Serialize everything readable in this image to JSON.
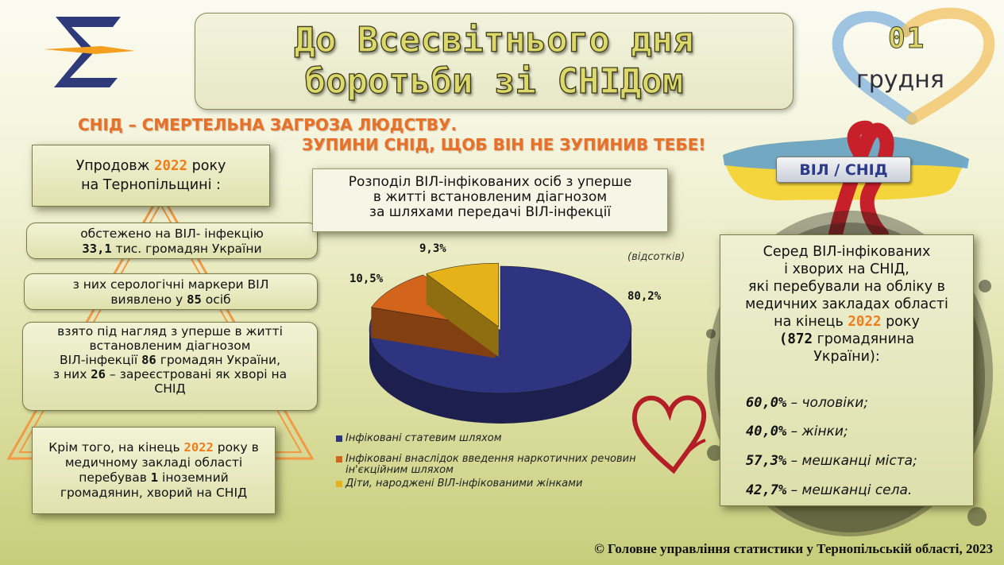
{
  "title": {
    "line1": "До Всесвітнього дня",
    "line2": "боротьби зі СНІДом"
  },
  "date": {
    "day": "01",
    "month": "грудня"
  },
  "slogan": {
    "line1": "СНІД – СМЕРТЕЛЬНА ЗАГРОЗА ЛЮДСТВУ.",
    "line2": "ЗУПИНИ СНІД, ЩОБ ВІН НЕ ЗУПИНИВ ТЕБЕ!"
  },
  "badge": "ВІЛ / СНІД",
  "left": {
    "lead_a": "Упродовж ",
    "lead_year": "2022",
    "lead_b": " року",
    "lead_c": "на Тернопільщині :",
    "p1_a": "обстежено на ВІЛ- інфекцію",
    "p1_num": "33,1",
    "p1_b": " тис. громадян України",
    "p2_a": "з них серологічні маркери ВІЛ",
    "p2_b": "виявлено у ",
    "p2_num": "85",
    "p2_c": "  осіб",
    "p3_a": "взято під нагляд з уперше в житті",
    "p3_b": "встановленим діагнозом",
    "p3_c": "ВІЛ-інфекції ",
    "p3_num1": "86",
    "p3_d": "  громадян України,",
    "p3_e": "з них ",
    "p3_num2": "26",
    "p3_f": "  –   зареєстровані як хворі на",
    "p3_g": "СНІД",
    "p4_a": "Крім того, на кінець ",
    "p4_year": "2022",
    "p4_b": " року в",
    "p4_c": "медичному закладі області",
    "p4_d": "перебував ",
    "p4_num": "1",
    "p4_e": "  іноземний",
    "p4_f": "громадянин, хворий на СНІД"
  },
  "chart_data": {
    "type": "pie",
    "title": "Розподіл ВІЛ-інфікованих осіб з уперше в житті встановленим діагнозом за шляхами передачі ВІЛ-інфекції",
    "unit_note": "(відсотків)",
    "slices": [
      {
        "label": "Інфіковані статевим шляхом",
        "value": 80.2,
        "value_label": "80,2%",
        "color": "#2e3480"
      },
      {
        "label": "Інфіковані внаслідок введення наркотичних речовин ін'єкційним шляхом",
        "value": 10.5,
        "value_label": "10,5%",
        "color": "#d2651b"
      },
      {
        "label": "Діти, народжені ВІЛ-інфікованими жінками",
        "value": 9.3,
        "value_label": "9,3%",
        "color": "#e5b21a"
      }
    ],
    "title_lines": [
      "Розподіл ВІЛ-інфікованих осіб з уперше",
      "в житті встановленим діагнозом",
      "за шляхами передачі ВІЛ-інфекції"
    ],
    "legend_lines": [
      [
        "Інфіковані статевим шляхом"
      ],
      [
        "Інфіковані внаслідок введення наркотичних речовин",
        "ін'єкційним шляхом"
      ],
      [
        "Діти, народжені ВІЛ-інфікованими жінками"
      ]
    ]
  },
  "right": {
    "l1": "Серед ВІЛ-інфікованих",
    "l2": "і хворих на СНІД,",
    "l3": "які перебували на обліку в",
    "l4": "медичних закладах області",
    "l5_a": "на кінець ",
    "l5_year": "2022",
    "l5_b": "  року",
    "l6_num": "(872",
    "l6_b": "  громадянина",
    "l7": "України):",
    "stats": [
      {
        "num": "60,0%",
        "text": " – чоловіки;"
      },
      {
        "num": "40,0%",
        "text": " – жінки;"
      },
      {
        "num": "57,3%",
        "text": "  – мешканці міста;"
      },
      {
        "num": "42,7%",
        "text": " – мешканці села."
      }
    ]
  },
  "colors": {
    "accent": "#f07d1c",
    "navy": "#2e3480",
    "orange": "#d2651b",
    "yellow": "#e5b21a",
    "ribbon": "#c8202a"
  },
  "footer": "© Головне управління статистики у Тернопільській області, 2023"
}
